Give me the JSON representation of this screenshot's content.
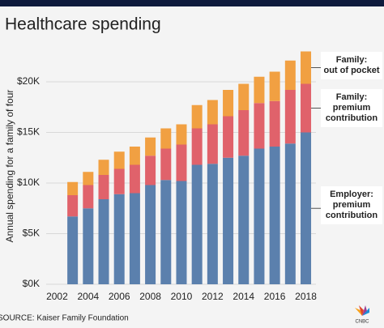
{
  "chart_data": {
    "type": "stacked_bar",
    "title": "Healthcare spending",
    "y_label": "Annual spending for a family of four",
    "source": "SOURCE: Kaiser Family Foundation",
    "x": [
      2003,
      2004,
      2005,
      2006,
      2007,
      2008,
      2009,
      2010,
      2011,
      2012,
      2013,
      2014,
      2015,
      2016,
      2017,
      2018
    ],
    "series": [
      {
        "name": "Employer:\npremium\ncontribution",
        "color": "#5b80ad",
        "values": [
          6700,
          7500,
          8400,
          8900,
          9000,
          9800,
          10300,
          10200,
          11800,
          11900,
          12500,
          12700,
          13400,
          13600,
          13900,
          15000
        ]
      },
      {
        "name": "Family:\npremium\ncontribution",
        "color": "#e0626b",
        "values": [
          2100,
          2300,
          2400,
          2500,
          2800,
          2900,
          3100,
          3600,
          3600,
          3900,
          4100,
          4500,
          4500,
          4500,
          5300,
          4800
        ]
      },
      {
        "name": "Family:\nout of pocket",
        "color": "#f1a042",
        "values": [
          1300,
          1300,
          1500,
          1700,
          1800,
          1800,
          2000,
          2000,
          2300,
          2400,
          2600,
          2600,
          2600,
          2900,
          2900,
          3200
        ]
      }
    ],
    "xlim": [
      2001.3,
      2018.65
    ],
    "xticks": [
      2002,
      2004,
      2006,
      2008,
      2010,
      2012,
      2014,
      2016,
      2018
    ],
    "ylim": [
      0,
      23500
    ],
    "yticks": [
      {
        "value": 0,
        "label": "$0K"
      },
      {
        "value": 5000,
        "label": "$5K"
      },
      {
        "value": 10000,
        "label": "$10K"
      },
      {
        "value": 15000,
        "label": "$15K"
      },
      {
        "value": 20000,
        "label": "$20K"
      }
    ],
    "grid": true
  }
}
